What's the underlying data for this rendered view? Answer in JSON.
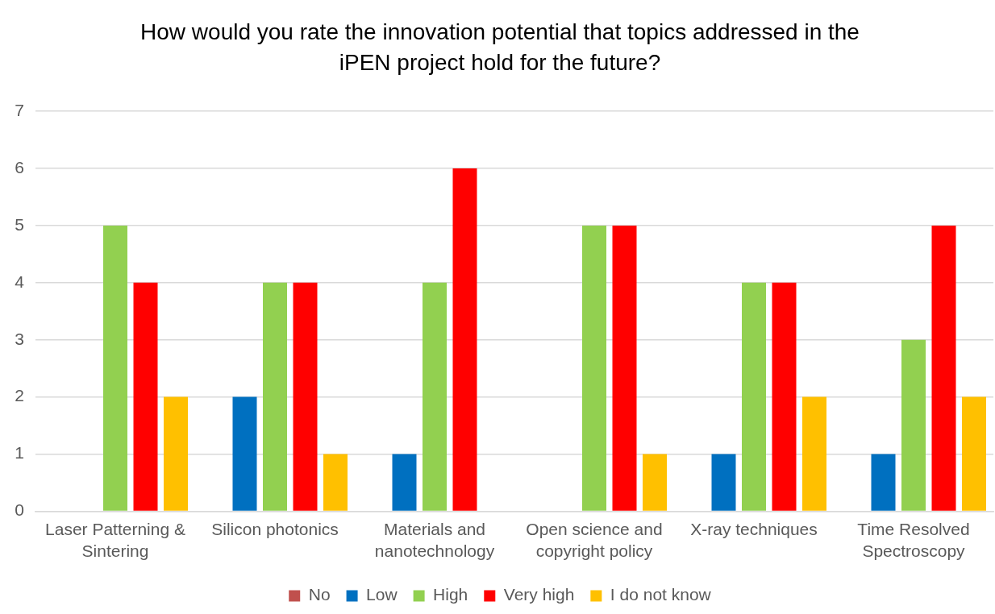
{
  "chart_data": {
    "type": "bar",
    "title": "How would you rate the innovation potential that topics addressed in the iPEN project hold for the future?",
    "categories": [
      "Laser Patterning & Sintering",
      "Silicon photonics",
      "Materials and nanotechnology",
      "Open science and copyright policy",
      "X-ray techniques",
      "Time Resolved Spectroscopy"
    ],
    "series": [
      {
        "name": "No",
        "color": "#c0504d",
        "values": [
          0,
          0,
          0,
          0,
          0,
          0
        ]
      },
      {
        "name": "Low",
        "color": "#0070c0",
        "values": [
          0,
          2,
          1,
          0,
          1,
          1
        ]
      },
      {
        "name": "High",
        "color": "#92d050",
        "values": [
          5,
          4,
          4,
          5,
          4,
          3
        ]
      },
      {
        "name": "Very high",
        "color": "#ff0000",
        "values": [
          4,
          4,
          6,
          5,
          4,
          5
        ]
      },
      {
        "name": "I do not know",
        "color": "#ffc000",
        "values": [
          2,
          1,
          0,
          1,
          2,
          2
        ]
      }
    ],
    "ylim": [
      0,
      7
    ],
    "yticks": [
      0,
      1,
      2,
      3,
      4,
      5,
      6,
      7
    ],
    "grid": "y",
    "legend": "bottom"
  }
}
